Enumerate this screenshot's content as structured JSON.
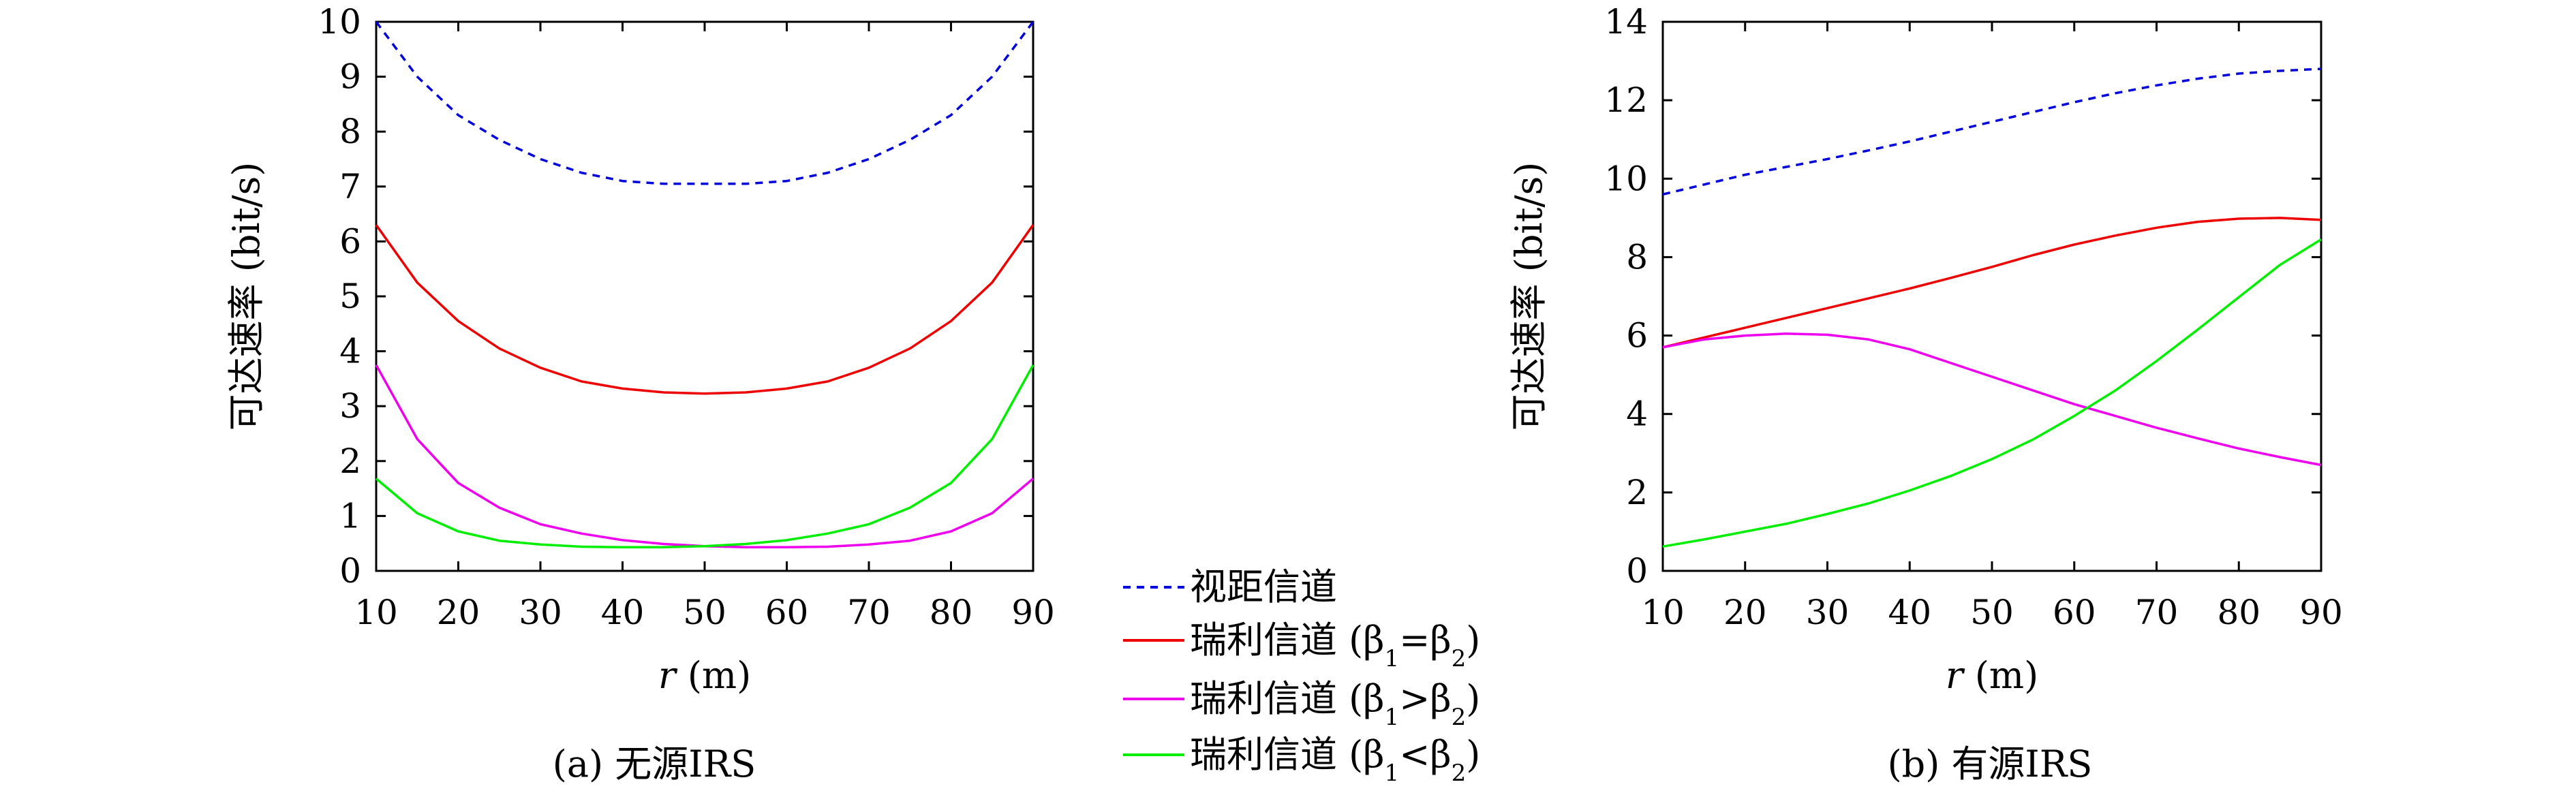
{
  "colors": {
    "los": "#0000dd",
    "equal": "#ee0000",
    "greater": "#ee00ee",
    "less": "#00ee00"
  },
  "legend": {
    "items": [
      {
        "key": "los",
        "label": "视距信道",
        "dash": true
      },
      {
        "key": "equal",
        "label": "瑞利信道 (β1=β2)",
        "dash": false
      },
      {
        "key": "greater",
        "label": "瑞利信道 (β1>β2)",
        "dash": false
      },
      {
        "key": "less",
        "label": "瑞利信道 (β1<β2)",
        "dash": false
      }
    ]
  },
  "chart_data": [
    {
      "type": "line",
      "caption": "(a) 无源IRS",
      "xlabel": "r (m)",
      "ylabel": "可达速率 (bit/s)",
      "xlim": [
        10,
        90
      ],
      "ylim": [
        0,
        10
      ],
      "xticks": [
        "10",
        "20",
        "30",
        "40",
        "50",
        "60",
        "70",
        "80",
        "90"
      ],
      "yticks": [
        "0",
        "1",
        "2",
        "3",
        "4",
        "5",
        "6",
        "7",
        "8",
        "9",
        "10"
      ],
      "x": [
        10,
        15,
        20,
        25,
        30,
        35,
        40,
        45,
        50,
        55,
        60,
        65,
        70,
        75,
        80,
        85,
        90
      ],
      "series": [
        {
          "key": "los",
          "name": "视距信道",
          "values": [
            10.0,
            9.0,
            8.3,
            7.85,
            7.5,
            7.25,
            7.1,
            7.05,
            7.05,
            7.05,
            7.1,
            7.25,
            7.5,
            7.85,
            8.3,
            9.0,
            10.0
          ]
        },
        {
          "key": "equal",
          "name": "瑞利信道 (β1=β2)",
          "values": [
            6.3,
            5.25,
            4.55,
            4.05,
            3.7,
            3.45,
            3.32,
            3.25,
            3.23,
            3.25,
            3.32,
            3.45,
            3.7,
            4.05,
            4.55,
            5.25,
            6.3
          ]
        },
        {
          "key": "greater",
          "name": "瑞利信道 (β1>β2)",
          "values": [
            3.75,
            2.4,
            1.6,
            1.15,
            0.85,
            0.68,
            0.56,
            0.49,
            0.45,
            0.43,
            0.43,
            0.44,
            0.48,
            0.55,
            0.72,
            1.05,
            1.68
          ]
        },
        {
          "key": "less",
          "name": "瑞利信道 (β1<β2)",
          "values": [
            1.68,
            1.05,
            0.72,
            0.55,
            0.48,
            0.44,
            0.43,
            0.43,
            0.45,
            0.49,
            0.56,
            0.68,
            0.85,
            1.15,
            1.6,
            2.4,
            3.75
          ]
        }
      ]
    },
    {
      "type": "line",
      "caption": "(b) 有源IRS",
      "xlabel": "r (m)",
      "ylabel": "可达速率 (bit/s)",
      "xlim": [
        10,
        90
      ],
      "ylim": [
        0,
        14
      ],
      "xticks": [
        "10",
        "20",
        "30",
        "40",
        "50",
        "60",
        "70",
        "80",
        "90"
      ],
      "yticks": [
        "0",
        "2",
        "4",
        "6",
        "8",
        "10",
        "12",
        "14"
      ],
      "x": [
        10,
        15,
        20,
        25,
        30,
        35,
        40,
        45,
        50,
        55,
        60,
        65,
        70,
        75,
        80,
        85,
        90
      ],
      "series": [
        {
          "key": "los",
          "name": "视距信道",
          "values": [
            9.6,
            9.85,
            10.1,
            10.3,
            10.5,
            10.72,
            10.95,
            11.2,
            11.45,
            11.7,
            11.95,
            12.18,
            12.38,
            12.55,
            12.68,
            12.75,
            12.8
          ]
        },
        {
          "key": "equal",
          "name": "瑞利信道 (β1=β2)",
          "values": [
            5.7,
            5.95,
            6.2,
            6.45,
            6.7,
            6.95,
            7.2,
            7.47,
            7.75,
            8.05,
            8.32,
            8.55,
            8.75,
            8.9,
            8.98,
            9.0,
            8.95
          ]
        },
        {
          "key": "greater",
          "name": "瑞利信道 (β1>β2)",
          "values": [
            5.7,
            5.9,
            6.0,
            6.05,
            6.02,
            5.9,
            5.65,
            5.3,
            4.95,
            4.6,
            4.25,
            3.95,
            3.65,
            3.38,
            3.12,
            2.9,
            2.7
          ]
        },
        {
          "key": "less",
          "name": "瑞利信道 (β1<β2)",
          "values": [
            0.62,
            0.8,
            1.0,
            1.2,
            1.45,
            1.72,
            2.05,
            2.42,
            2.85,
            3.35,
            3.95,
            4.6,
            5.35,
            6.15,
            6.98,
            7.8,
            8.45
          ]
        }
      ]
    }
  ]
}
